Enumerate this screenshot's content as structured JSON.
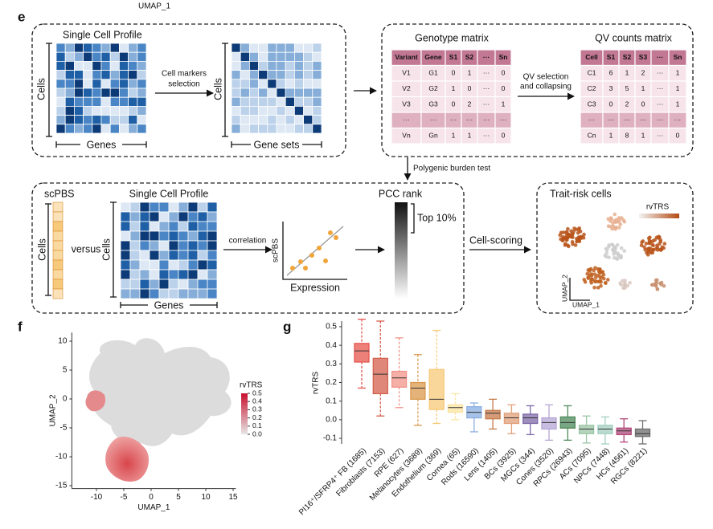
{
  "top_fragment": "UMAP_1",
  "panel_e": {
    "label": "e",
    "profile_title": "Single Cell Profile",
    "cells_label": "Cells",
    "genes_label": "Genes",
    "markers_arrow": [
      "Cell markers",
      "selection"
    ],
    "cells_label_2": "Cells",
    "gene_sets_label": "Gene sets",
    "genotype": {
      "title": "Genotype matrix",
      "header": [
        "Variant",
        "Gene",
        "S1",
        "S2",
        "···",
        "Sn"
      ],
      "rows": [
        [
          "V1",
          "G1",
          "0",
          "1",
          "···",
          "0"
        ],
        [
          "V2",
          "G2",
          "1",
          "0",
          "···",
          "0"
        ],
        [
          "V3",
          "G3",
          "0",
          "2",
          "···",
          "1"
        ],
        [
          "···",
          "···",
          "···",
          "···",
          "···",
          "···"
        ],
        [
          "Vn",
          "Gn",
          "1",
          "1",
          "···",
          "0"
        ]
      ]
    },
    "qv_arrow": [
      "QV selection",
      "and collapsing"
    ],
    "qv": {
      "title": "QV counts matrix",
      "header": [
        "Cell",
        "S1",
        "S2",
        "S3",
        "···",
        "Sn"
      ],
      "rows": [
        [
          "C1",
          "6",
          "1",
          "2",
          "···",
          "1"
        ],
        [
          "C2",
          "3",
          "5",
          "1",
          "···",
          "1"
        ],
        [
          "C3",
          "0",
          "2",
          "0",
          "···",
          "1"
        ],
        [
          "···",
          "···",
          "···",
          "···",
          "···",
          "···"
        ],
        [
          "Cn",
          "1",
          "8",
          "1",
          "···",
          "0"
        ]
      ]
    },
    "burden_test": "Polygenic burden test",
    "scpbs": "scPBS",
    "scpbs_cells": "Cells",
    "versus": "versus",
    "profile_title_2": "Single Cell Profile",
    "cells_label_3": "Cells",
    "genes_label_2": "Genes",
    "correlation": "correlation",
    "scatter_y": "scPBS",
    "scatter_x": "Expression",
    "pcc_rank": "PCC rank",
    "top": "Top 10%",
    "cell_scoring": "Cell-scoring",
    "trait_title": "Trait-risk cells",
    "rvtrs": "rvTRS",
    "umap2": "UMAP_2",
    "umap1": "UMAP_1"
  },
  "panel_f": {
    "label": "f",
    "xlabel": "UMAP_1",
    "ylabel": "UMAP_2",
    "xlim": [
      -14.5,
      15.5
    ],
    "ylim": [
      -15.5,
      11.5
    ],
    "xticks": [
      -10,
      -5,
      0,
      5,
      10,
      15
    ],
    "yticks": [
      10,
      5,
      0,
      -5,
      -10,
      -15
    ],
    "colorbar_title": "rvTRS",
    "colorbar_lim": [
      0,
      0.5
    ],
    "colorbar_ticks": [
      0.5,
      0.4,
      0.3,
      0.2,
      0.1,
      {
        "value": 0,
        "label": "0.0"
      }
    ]
  },
  "panel_g": {
    "label": "g",
    "type": "box",
    "ylabel": "rvTRS",
    "ylim": [
      -0.13,
      0.53
    ],
    "yticks": [
      0.5,
      0.4,
      0.3,
      0.2,
      0.1,
      {
        "value": 0,
        "label": "0.0"
      },
      -0.1
    ],
    "categories": [
      "PI16⁺/SFRP4⁺ FB (1685)",
      "Fibroblasts (7153)",
      "RPE (627)",
      "Melanocytes (3689)",
      "Endothelium (369)",
      "Cornea (65)",
      "Rods (16590)",
      "Lens (1405)",
      "BCs (3925)",
      "MGCs (344)",
      "Cones (3520)",
      "RPCs (26943)",
      "ACs (7095)",
      "NPCs (7448)",
      "HCs (4561)",
      "RGCs (8221)"
    ],
    "colors": [
      "#e8554e",
      "#d4604e",
      "#f2948a",
      "#d99a4e",
      "#f7c978",
      "#fbe3a0",
      "#8aaee0",
      "#c77a4a",
      "#e2a07a",
      "#7e6aa8",
      "#b6a6d6",
      "#4e8a5a",
      "#9bc6a6",
      "#a3cfc0",
      "#b0487a",
      "#6e6e6e"
    ],
    "whisker_low": [
      0.17,
      0.02,
      0.065,
      -0.03,
      -0.02,
      0.0,
      -0.065,
      -0.05,
      -0.075,
      -0.08,
      -0.11,
      -0.11,
      -0.125,
      -0.13,
      -0.12,
      -0.13
    ],
    "q1": [
      0.31,
      0.14,
      0.175,
      0.11,
      0.055,
      0.04,
      0.01,
      0.005,
      -0.02,
      -0.02,
      -0.05,
      -0.045,
      -0.075,
      -0.075,
      -0.08,
      -0.09
    ],
    "median": [
      0.37,
      0.245,
      0.225,
      0.17,
      0.11,
      0.065,
      0.04,
      0.035,
      0.01,
      0.01,
      -0.015,
      -0.015,
      -0.05,
      -0.05,
      -0.06,
      -0.075
    ],
    "q3": [
      0.41,
      0.33,
      0.26,
      0.2,
      0.27,
      0.08,
      0.07,
      0.05,
      0.035,
      0.03,
      0.01,
      0.015,
      -0.03,
      -0.03,
      -0.045,
      -0.05
    ],
    "whisker_high": [
      0.54,
      0.53,
      0.44,
      0.35,
      0.48,
      0.14,
      0.09,
      0.11,
      0.08,
      0.075,
      0.08,
      0.075,
      0.02,
      0.015,
      0.005,
      -0.005
    ]
  }
}
